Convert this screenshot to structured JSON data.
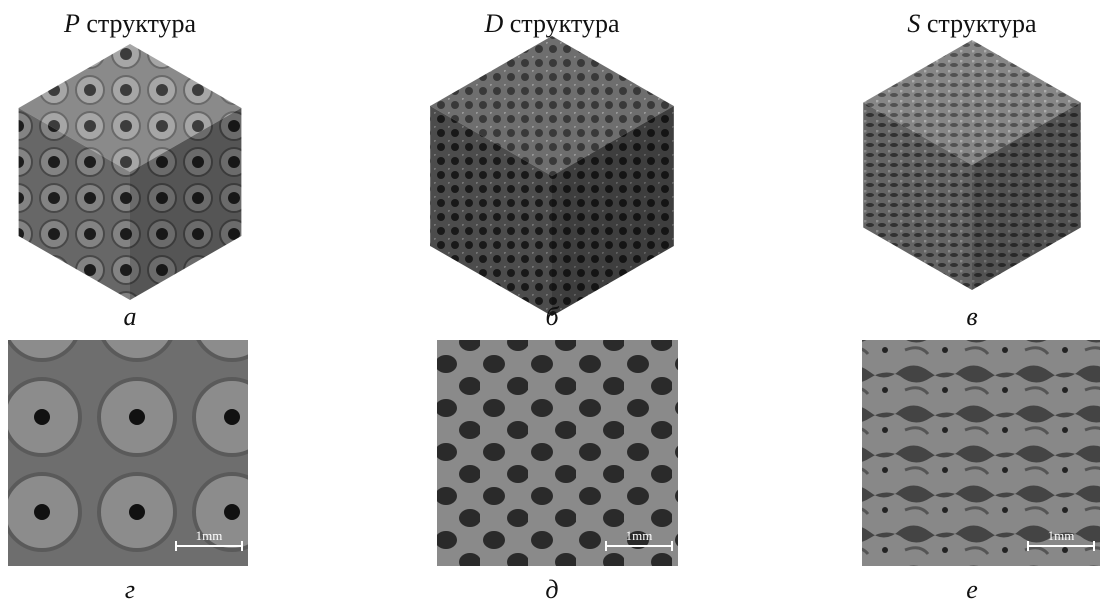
{
  "columns": [
    {
      "letter": "P",
      "word": "структура"
    },
    {
      "letter": "D",
      "word": "структура"
    },
    {
      "letter": "S",
      "word": "структура"
    }
  ],
  "panel_labels": [
    "а",
    "б",
    "в",
    "г",
    "д",
    "е"
  ],
  "scale_bars": [
    "1mm",
    "1mm",
    "1mm"
  ]
}
